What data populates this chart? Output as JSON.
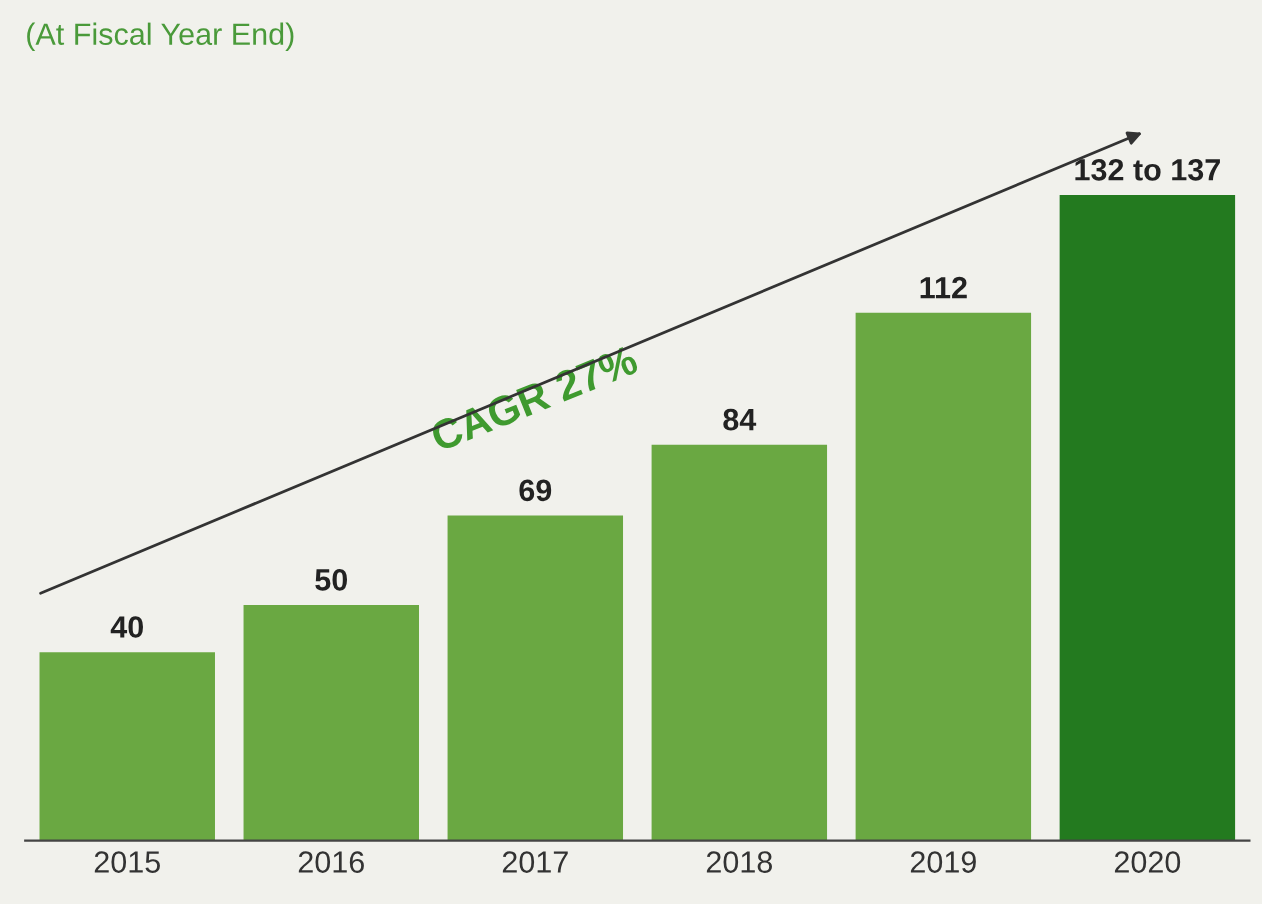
{
  "chart_data": {
    "type": "bar",
    "subtitle": "(At Fiscal Year End)",
    "categories": [
      "2015",
      "2016",
      "2017",
      "2018",
      "2019",
      "2020"
    ],
    "values": [
      40,
      50,
      69,
      84,
      112,
      137
    ],
    "colors": [
      "#6aa842",
      "#6aa842",
      "#6aa842",
      "#6aa842",
      "#6aa842",
      "#237a1f"
    ],
    "value_labels": [
      "40",
      "50",
      "69",
      "84",
      "112",
      "132 to 137"
    ],
    "annotations": [
      "CAGR 27%"
    ],
    "grid": false,
    "legend": false
  }
}
